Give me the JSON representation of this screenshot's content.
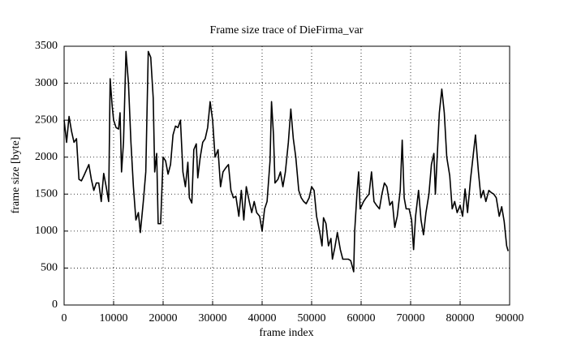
{
  "chart_data": {
    "type": "line",
    "title": "Frame size trace of DieFirma_var",
    "x_label": "frame index",
    "y_label": "frame size [byte]",
    "x": [
      0,
      500,
      1000,
      1500,
      2000,
      2500,
      3000,
      3500,
      4000,
      5000,
      5500,
      6000,
      6500,
      7000,
      7500,
      8000,
      8500,
      9000,
      9300,
      9700,
      10000,
      10500,
      11000,
      11300,
      11600,
      12000,
      12500,
      13000,
      13500,
      14000,
      14500,
      15000,
      15400,
      16000,
      16500,
      17000,
      17500,
      18000,
      18300,
      18700,
      19000,
      19500,
      20000,
      20500,
      21000,
      21500,
      22000,
      22500,
      23000,
      23500,
      24000,
      24500,
      25000,
      25300,
      25800,
      26200,
      26700,
      27000,
      27500,
      28000,
      28500,
      29000,
      29500,
      30000,
      30500,
      31100,
      31600,
      32100,
      32600,
      33200,
      33700,
      34200,
      34700,
      35300,
      35800,
      36300,
      36800,
      37400,
      37900,
      38400,
      38900,
      39500,
      40000,
      40500,
      41000,
      41600,
      41900,
      42300,
      42600,
      43200,
      43700,
      44200,
      44700,
      45300,
      45800,
      46300,
      46800,
      47400,
      47900,
      48400,
      48900,
      49500,
      50000,
      50500,
      51000,
      51600,
      52100,
      52400,
      52900,
      53400,
      53900,
      54200,
      54700,
      55200,
      55800,
      56300,
      56800,
      57400,
      57900,
      58500,
      58700,
      59200,
      59500,
      59800,
      60500,
      61000,
      61600,
      62100,
      62600,
      63100,
      63700,
      64200,
      64700,
      65200,
      65800,
      66300,
      66800,
      67300,
      67900,
      68300,
      68700,
      69100,
      69700,
      70200,
      70600,
      71000,
      71600,
      72100,
      72600,
      73100,
      73700,
      74200,
      74700,
      75000,
      75800,
      76300,
      76800,
      77300,
      77900,
      78400,
      78900,
      79400,
      80000,
      80500,
      81000,
      81500,
      82100,
      82600,
      83100,
      83700,
      84200,
      84700,
      85200,
      85800,
      86300,
      86800,
      87300,
      87900,
      88400,
      88900,
      89400,
      89700
    ],
    "values": [
      2500,
      2200,
      2550,
      2350,
      2200,
      2250,
      1700,
      1680,
      1750,
      1900,
      1700,
      1550,
      1650,
      1650,
      1400,
      1780,
      1600,
      1400,
      3060,
      2700,
      2500,
      2400,
      2380,
      2600,
      1800,
      2200,
      3430,
      3000,
      2200,
      1600,
      1150,
      1250,
      980,
      1400,
      1800,
      3430,
      3350,
      2800,
      1800,
      2050,
      1100,
      1100,
      2000,
      1950,
      1770,
      1900,
      2300,
      2420,
      2400,
      2500,
      1800,
      1600,
      1930,
      1450,
      1380,
      2100,
      2180,
      1720,
      2000,
      2200,
      2250,
      2400,
      2750,
      2500,
      2000,
      2100,
      1600,
      1800,
      1850,
      1900,
      1550,
      1450,
      1470,
      1200,
      1550,
      1150,
      1600,
      1400,
      1250,
      1400,
      1250,
      1200,
      1000,
      1300,
      1400,
      1950,
      2750,
      2300,
      1650,
      1700,
      1800,
      1600,
      1800,
      2200,
      2650,
      2250,
      2000,
      1550,
      1450,
      1400,
      1370,
      1450,
      1600,
      1550,
      1200,
      1000,
      800,
      1180,
      1100,
      800,
      900,
      620,
      780,
      980,
      750,
      620,
      620,
      620,
      600,
      450,
      1000,
      1550,
      1800,
      1300,
      1400,
      1450,
      1500,
      1800,
      1400,
      1350,
      1300,
      1500,
      1650,
      1600,
      1350,
      1400,
      1050,
      1200,
      1550,
      2230,
      1450,
      1300,
      1300,
      1150,
      750,
      1200,
      1550,
      1150,
      950,
      1250,
      1500,
      1900,
      2050,
      1500,
      2600,
      2920,
      2600,
      2000,
      1750,
      1300,
      1400,
      1250,
      1350,
      1200,
      1570,
      1250,
      1700,
      2000,
      2300,
      1800,
      1450,
      1550,
      1400,
      1550,
      1520,
      1500,
      1450,
      1200,
      1330,
      1130,
      800,
      730
    ],
    "color": "#000000",
    "xlim": [
      0,
      90000
    ],
    "ylim": [
      0,
      3500
    ],
    "xticks": [
      0,
      10000,
      20000,
      30000,
      40000,
      50000,
      60000,
      70000,
      80000,
      90000
    ],
    "yticks": [
      0,
      500,
      1000,
      1500,
      2000,
      2500,
      3000,
      3500
    ],
    "grid": true
  }
}
